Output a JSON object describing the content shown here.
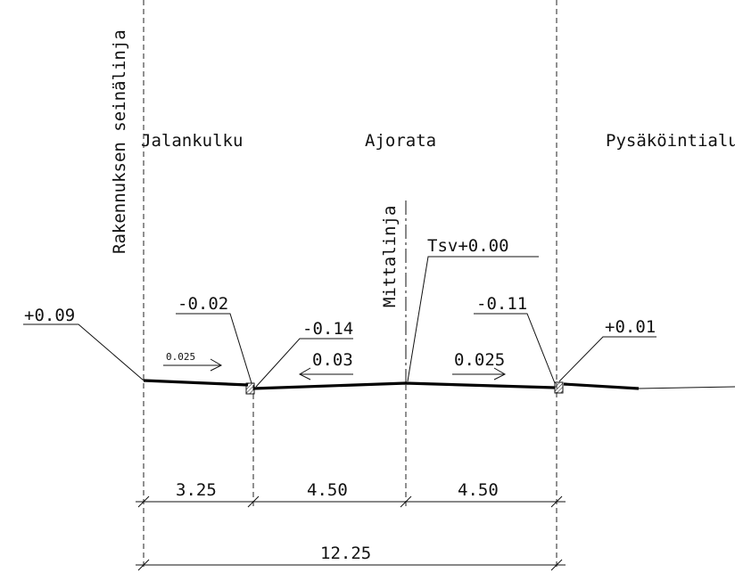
{
  "labels": {
    "building_line": "Rakennuksen seinälinja",
    "sidewalk": "Jalankulku",
    "roadway": "Ajorata",
    "parking": "Pysäköintialu",
    "centerline": "Mittalinja"
  },
  "elevations": {
    "left_edge": "+0.09",
    "curb_top_left": "-0.02",
    "curb_bottom_left": "-0.14",
    "center": "Tsv+0.00",
    "curb_bottom_right": "-0.11",
    "right_curb": "+0.01"
  },
  "slopes": {
    "sidewalk": "0.025",
    "road_left": "0.03",
    "road_right": "0.025"
  },
  "dimensions": {
    "sidewalk_width": "3.25",
    "left_lane": "4.50",
    "right_lane": "4.50",
    "total": "12.25"
  },
  "colors": {
    "ink": "#111111",
    "background": "#ffffff"
  }
}
